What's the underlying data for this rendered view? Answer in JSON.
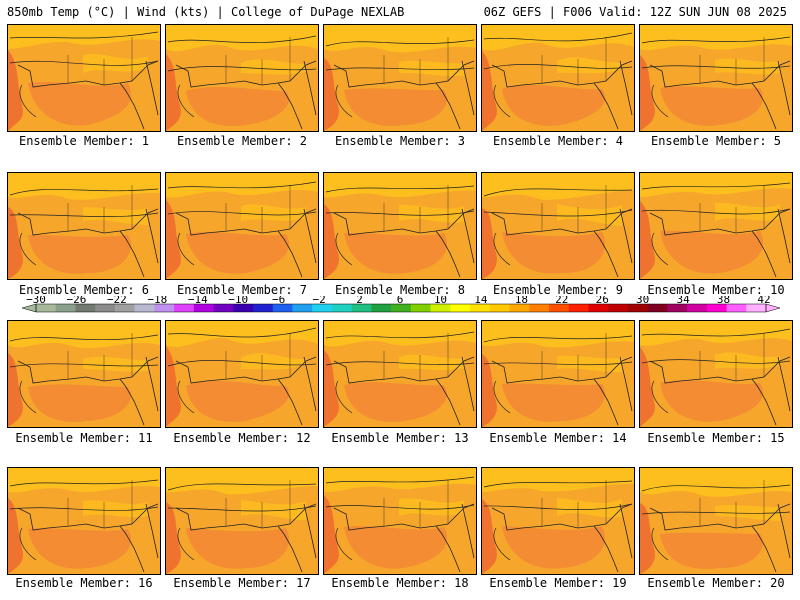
{
  "header": {
    "left": "850mb Temp (°C) | Wind (kts) | College of DuPage NEXLAB",
    "right": "06Z GEFS | F006 Valid: 12Z SUN JUN 08 2025"
  },
  "member_prefix": "Ensemble Member: ",
  "members": [
    "1",
    "2",
    "3",
    "4",
    "5",
    "6",
    "7",
    "8",
    "9",
    "10",
    "11",
    "12",
    "13",
    "14",
    "15",
    "16",
    "17",
    "18",
    "19",
    "20"
  ],
  "colorbar": {
    "tick_labels": [
      "−30",
      "−26",
      "−22",
      "−18",
      "−14",
      "−10",
      "−6",
      "−2",
      "2",
      "6",
      "10",
      "14",
      "18",
      "22",
      "26",
      "30",
      "34",
      "38",
      "42"
    ],
    "colors": [
      "#a7b99a",
      "#8aa08a",
      "#707a70",
      "#8a8a8a",
      "#a0a0a0",
      "#b8b8d0",
      "#c090f0",
      "#e040ff",
      "#b000e0",
      "#7000c0",
      "#3a00b0",
      "#2020d0",
      "#2060f0",
      "#20a0f0",
      "#20d0f0",
      "#20d0c0",
      "#20c080",
      "#20a040",
      "#40b020",
      "#80d000",
      "#d0f000",
      "#ffff00",
      "#ffe000",
      "#ffc800",
      "#ffa800",
      "#ff8000",
      "#ff5000",
      "#ff2000",
      "#e00000",
      "#c00000",
      "#a00000",
      "#800020",
      "#a00060",
      "#d000a0",
      "#ff00d0",
      "#ff60ff",
      "#ffb0ff"
    ]
  },
  "map_colors": {
    "warm": "#fdbf1e",
    "mid": "#f7a62c",
    "hot": "#f28a33",
    "hotter": "#ed6a2f",
    "coast": "#222222"
  }
}
